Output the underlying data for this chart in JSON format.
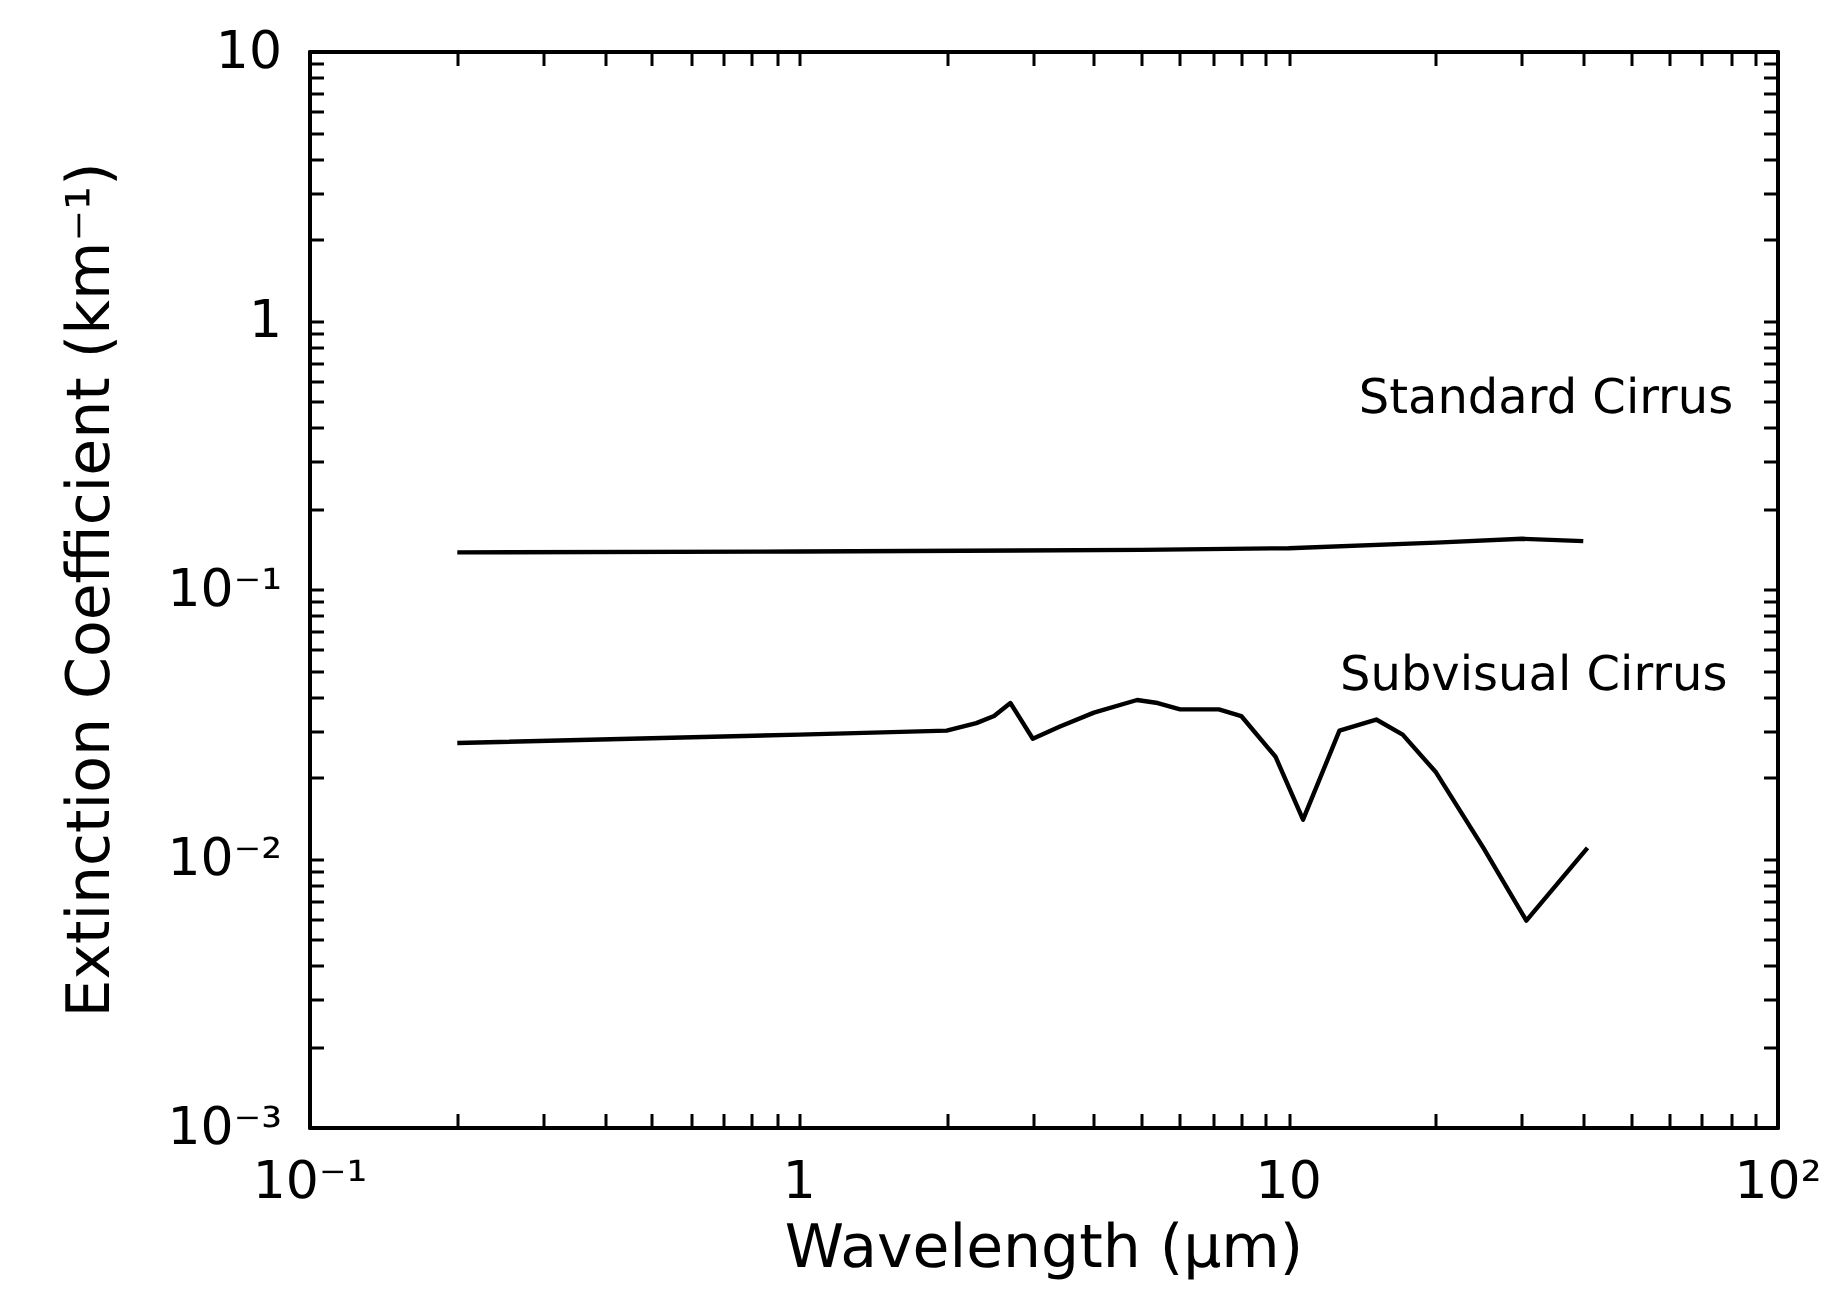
{
  "chart_data": {
    "type": "line",
    "xlabel": "Wavelength (μm)",
    "ylabel": "Extinction Coefficient (km⁻¹)",
    "log": "xy",
    "xlim": [
      0.1,
      100
    ],
    "xticks": [
      {
        "value": 0.1,
        "label": "10⁻¹"
      },
      1,
      10,
      {
        "value": 100,
        "label": "10²"
      }
    ],
    "ylim": [
      0.001,
      10
    ],
    "yticks": [
      {
        "value": 0.001,
        "label": "10⁻³"
      },
      {
        "value": 0.01,
        "label": "10⁻²"
      },
      {
        "value": 0.1,
        "label": "10⁻¹"
      },
      1,
      10
    ],
    "grid": false,
    "legend": "right",
    "marker": "none",
    "line_style": "solid",
    "series": [
      {
        "name": "Standard Cirrus",
        "color": "#000000",
        "x": [
          0.2,
          1,
          5,
          10,
          20,
          30,
          40
        ],
        "values": [
          0.138,
          0.139,
          0.141,
          0.143,
          0.15,
          0.155,
          0.152
        ]
      },
      {
        "name": "Subvisual Cirrus",
        "color": "#000000",
        "x": [
          0.2,
          1,
          2,
          2.3,
          2.5,
          2.7,
          3.0,
          3.4,
          4.0,
          4.9,
          5.4,
          6.0,
          7.2,
          8.0,
          9.4,
          10.7,
          12.7,
          15.1,
          17.1,
          20,
          25,
          30.6,
          40.8
        ],
        "values": [
          0.027,
          0.029,
          0.03,
          0.032,
          0.034,
          0.038,
          0.028,
          0.031,
          0.035,
          0.039,
          0.038,
          0.036,
          0.036,
          0.034,
          0.024,
          0.014,
          0.03,
          0.033,
          0.029,
          0.021,
          0.011,
          0.0059,
          0.011
        ]
      }
    ]
  }
}
